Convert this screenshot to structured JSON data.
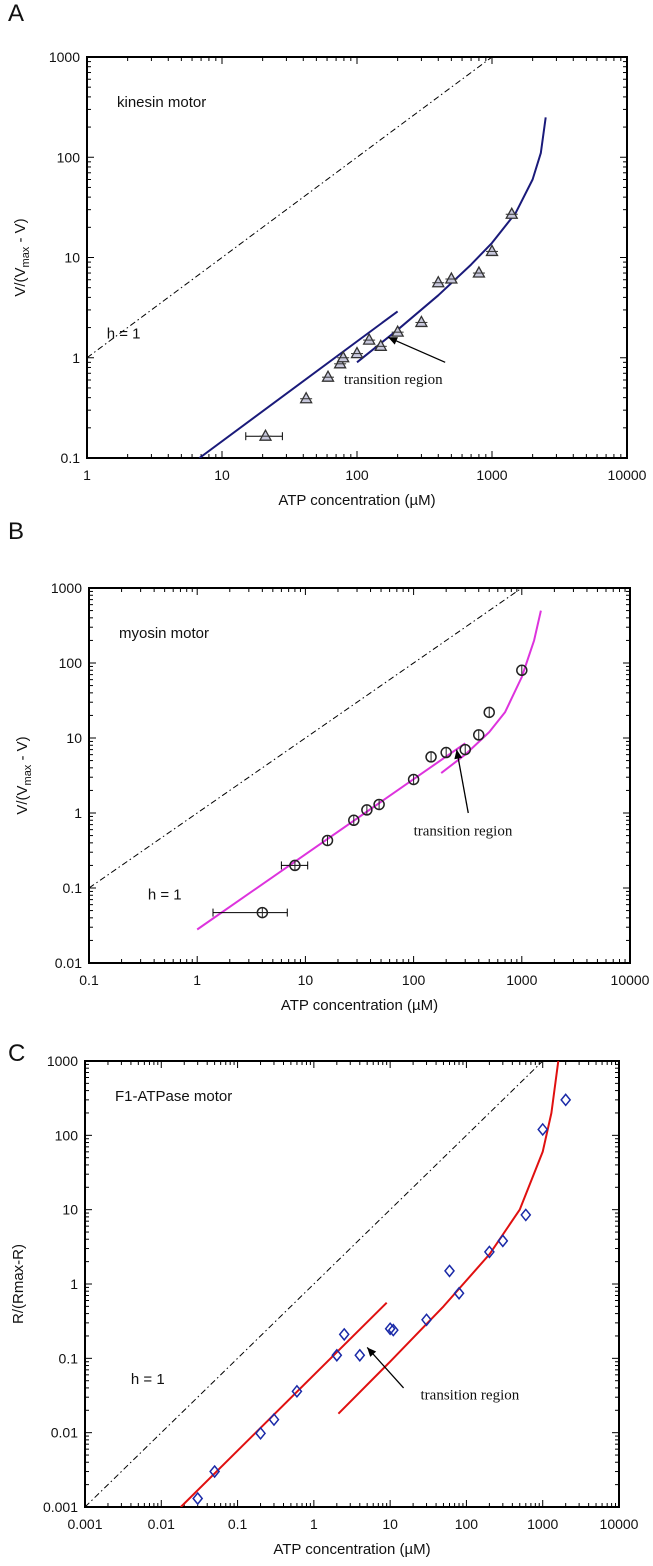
{
  "chart_data": [
    {
      "panel_label": "A",
      "type": "scatter",
      "scale": "log-log",
      "xlabel": "ATP concentration",
      "xunit": "(µM)",
      "ylabel": "V/(V",
      "ylabel_sub": "max",
      "ylabel_tail": " - V)",
      "xlim": [
        1,
        10000
      ],
      "ylim": [
        0.1,
        1000
      ],
      "xticks": [
        "1",
        "10",
        "100",
        "1000",
        "10000"
      ],
      "yticks": [
        "0.1",
        "1",
        "10",
        "100",
        "1000"
      ],
      "grid": false,
      "annotation_title": "kinesin motor",
      "h_label": "h = 1",
      "transition_label": "transition region",
      "marker": "triangle",
      "marker_color": "#333333",
      "curve_color": "#1a1a7a",
      "points": [
        {
          "x": 21,
          "y": 0.165,
          "xerr": [
            15,
            28
          ]
        },
        {
          "x": 42,
          "y": 0.39
        },
        {
          "x": 61,
          "y": 0.64
        },
        {
          "x": 75,
          "y": 0.87
        },
        {
          "x": 79,
          "y": 1.0
        },
        {
          "x": 100,
          "y": 1.1
        },
        {
          "x": 123,
          "y": 1.5
        },
        {
          "x": 150,
          "y": 1.3
        },
        {
          "x": 200,
          "y": 1.8
        },
        {
          "x": 300,
          "y": 2.25
        },
        {
          "x": 400,
          "y": 5.6
        },
        {
          "x": 500,
          "y": 6.1
        },
        {
          "x": 800,
          "y": 7.0
        },
        {
          "x": 1000,
          "y": 11.5
        },
        {
          "x": 1400,
          "y": 27
        }
      ],
      "fit_low": [
        [
          6.8,
          0.1
        ],
        [
          200,
          2.9
        ]
      ],
      "fit_high": [
        [
          100,
          0.9
        ],
        [
          200,
          1.9
        ],
        [
          400,
          4.2
        ],
        [
          700,
          8.5
        ],
        [
          1000,
          14
        ],
        [
          1500,
          28
        ],
        [
          2000,
          60
        ],
        [
          2300,
          110
        ],
        [
          2500,
          250
        ]
      ],
      "annot_text_pos": {
        "x": 80,
        "y": 0.55
      },
      "arrow_from": {
        "x": 450,
        "y": 0.9
      },
      "arrow_to": {
        "x": 170,
        "y": 1.6
      }
    },
    {
      "panel_label": "B",
      "type": "scatter",
      "scale": "log-log",
      "xlabel": "ATP concentration",
      "xunit": "(µM)",
      "ylabel": "V/(V",
      "ylabel_sub": "max",
      "ylabel_tail": " - V)",
      "xlim": [
        0.1,
        10000
      ],
      "ylim": [
        0.01,
        1000
      ],
      "xticks": [
        "0.1",
        "1",
        "10",
        "100",
        "1000",
        "10000"
      ],
      "yticks": [
        "0.01",
        "0.1",
        "1",
        "10",
        "100",
        "1000"
      ],
      "grid": false,
      "annotation_title": "myosin motor",
      "h_label": "h = 1",
      "transition_label": "transition region",
      "marker": "circle",
      "marker_color": "#222222",
      "curve_color": "#dd33dd",
      "points": [
        {
          "x": 4,
          "y": 0.047,
          "xerr": [
            1.4,
            6.8
          ]
        },
        {
          "x": 8,
          "y": 0.2,
          "xerr": [
            6,
            10.5
          ]
        },
        {
          "x": 16,
          "y": 0.43
        },
        {
          "x": 28,
          "y": 0.8
        },
        {
          "x": 37,
          "y": 1.1
        },
        {
          "x": 48,
          "y": 1.3
        },
        {
          "x": 100,
          "y": 2.8
        },
        {
          "x": 145,
          "y": 5.6
        },
        {
          "x": 200,
          "y": 6.4
        },
        {
          "x": 300,
          "y": 7.0
        },
        {
          "x": 400,
          "y": 11
        },
        {
          "x": 500,
          "y": 22
        },
        {
          "x": 1000,
          "y": 80
        }
      ],
      "fit_low": [
        [
          1,
          0.028
        ],
        [
          300,
          8.5
        ]
      ],
      "fit_high": [
        [
          180,
          3.4
        ],
        [
          300,
          6.0
        ],
        [
          500,
          12
        ],
        [
          700,
          22
        ],
        [
          1000,
          65
        ],
        [
          1300,
          200
        ],
        [
          1500,
          500
        ]
      ],
      "annot_text_pos": {
        "x": 100,
        "y": 0.5
      },
      "arrow_from": {
        "x": 320,
        "y": 1.0
      },
      "arrow_to": {
        "x": 250,
        "y": 7.0
      }
    },
    {
      "panel_label": "C",
      "type": "scatter",
      "scale": "log-log",
      "xlabel": "ATP concentration",
      "xunit": "(µM)",
      "ylabel": "R/(Rmax-R)",
      "ylabel_sub": "",
      "ylabel_tail": "",
      "xlim": [
        0.001,
        10000
      ],
      "ylim": [
        0.001,
        1000
      ],
      "xticks": [
        "0.001",
        "0.01",
        "0.1",
        "1",
        "10",
        "100",
        "1000",
        "10000"
      ],
      "yticks": [
        "0.001",
        "0.01",
        "0.1",
        "1",
        "10",
        "100",
        "1000"
      ],
      "grid": false,
      "annotation_title": "F1-ATPase motor",
      "h_label": "h = 1",
      "transition_label": "transition region",
      "marker": "diamond",
      "marker_color": "#1a2aa8",
      "curve_color": "#e01010",
      "points": [
        {
          "x": 0.03,
          "y": 0.0013
        },
        {
          "x": 0.05,
          "y": 0.003
        },
        {
          "x": 0.2,
          "y": 0.0098
        },
        {
          "x": 0.3,
          "y": 0.015
        },
        {
          "x": 0.6,
          "y": 0.036
        },
        {
          "x": 2,
          "y": 0.11
        },
        {
          "x": 2.5,
          "y": 0.21
        },
        {
          "x": 4,
          "y": 0.11
        },
        {
          "x": 10,
          "y": 0.25
        },
        {
          "x": 11,
          "y": 0.24
        },
        {
          "x": 30,
          "y": 0.33
        },
        {
          "x": 60,
          "y": 1.5
        },
        {
          "x": 80,
          "y": 0.75
        },
        {
          "x": 200,
          "y": 2.7
        },
        {
          "x": 300,
          "y": 3.8
        },
        {
          "x": 600,
          "y": 8.5
        },
        {
          "x": 1000,
          "y": 120
        },
        {
          "x": 2000,
          "y": 300
        }
      ],
      "fit_low": [
        [
          0.018,
          0.001
        ],
        [
          9,
          0.56
        ]
      ],
      "fit_high": [
        [
          2.1,
          0.018
        ],
        [
          10,
          0.09
        ],
        [
          50,
          0.5
        ],
        [
          200,
          2.5
        ],
        [
          500,
          10
        ],
        [
          1000,
          60
        ],
        [
          1300,
          200
        ],
        [
          1600,
          1000
        ]
      ],
      "annot_text_pos": {
        "x": 25,
        "y": 0.028
      },
      "arrow_from": {
        "x": 15,
        "y": 0.04
      },
      "arrow_to": {
        "x": 5,
        "y": 0.14
      }
    }
  ]
}
